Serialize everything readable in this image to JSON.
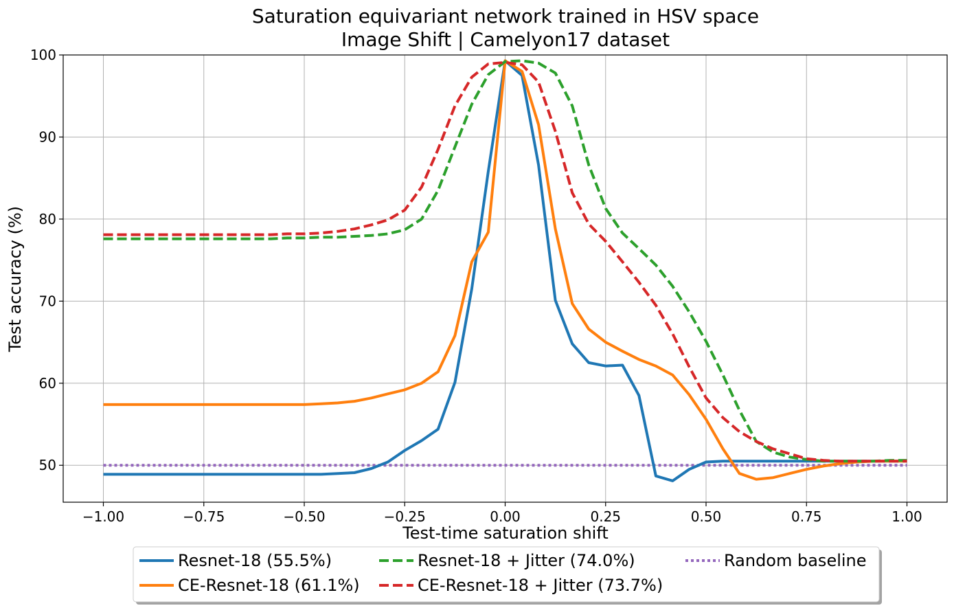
{
  "chart_data": {
    "type": "line",
    "title": [
      "Saturation equivariant network trained in HSV space",
      "Image Shift | Camelyon17 dataset"
    ],
    "xlabel": "Test-time saturation shift",
    "ylabel": "Test accuracy (%)",
    "xlim": [
      -1.1,
      1.1
    ],
    "ylim": [
      45.5,
      100
    ],
    "xticks": [
      -1.0,
      -0.75,
      -0.5,
      -0.25,
      0.0,
      0.25,
      0.5,
      0.75,
      1.0
    ],
    "xtick_labels": [
      "−1.00",
      "−0.75",
      "−0.50",
      "−0.25",
      "0.00",
      "0.25",
      "0.50",
      "0.75",
      "1.00"
    ],
    "yticks": [
      50,
      60,
      70,
      80,
      90,
      100
    ],
    "ytick_labels": [
      "50",
      "60",
      "70",
      "80",
      "90",
      "100"
    ],
    "grid": true,
    "legend_position": "below",
    "x": [
      -1.0,
      -0.958,
      -0.917,
      -0.875,
      -0.833,
      -0.792,
      -0.75,
      -0.708,
      -0.667,
      -0.625,
      -0.583,
      -0.542,
      -0.5,
      -0.458,
      -0.417,
      -0.375,
      -0.333,
      -0.292,
      -0.25,
      -0.208,
      -0.167,
      -0.125,
      -0.083,
      -0.042,
      0.0,
      0.042,
      0.083,
      0.125,
      0.167,
      0.208,
      0.25,
      0.292,
      0.333,
      0.375,
      0.417,
      0.458,
      0.5,
      0.542,
      0.583,
      0.625,
      0.667,
      0.708,
      0.75,
      0.792,
      0.833,
      0.875,
      0.917,
      0.958,
      1.0
    ],
    "series": [
      {
        "name": "Resnet-18 (55.5%)",
        "color": "#1f77b4",
        "style": "solid",
        "values": [
          48.9,
          48.9,
          48.9,
          48.9,
          48.9,
          48.9,
          48.9,
          48.9,
          48.9,
          48.9,
          48.9,
          48.9,
          48.9,
          48.9,
          49.0,
          49.1,
          49.6,
          50.4,
          51.8,
          53.0,
          54.4,
          60.1,
          71.5,
          85.8,
          99.3,
          97.5,
          86.6,
          70.1,
          64.8,
          62.5,
          62.1,
          62.2,
          58.5,
          48.7,
          48.1,
          49.5,
          50.4,
          50.5,
          50.5,
          50.5,
          50.5,
          50.5,
          50.5,
          50.5,
          50.5,
          50.5,
          50.5,
          50.5,
          50.5
        ]
      },
      {
        "name": "CE-Resnet-18 (61.1%)",
        "color": "#ff7f0e",
        "style": "solid",
        "values": [
          57.4,
          57.4,
          57.4,
          57.4,
          57.4,
          57.4,
          57.4,
          57.4,
          57.4,
          57.4,
          57.4,
          57.4,
          57.4,
          57.5,
          57.6,
          57.8,
          58.2,
          58.7,
          59.2,
          60.0,
          61.4,
          65.8,
          74.8,
          78.4,
          99.3,
          98.0,
          91.5,
          78.8,
          69.7,
          66.6,
          65.0,
          63.9,
          62.9,
          62.1,
          61.0,
          58.6,
          55.6,
          52.0,
          49.0,
          48.3,
          48.5,
          49.0,
          49.5,
          49.9,
          50.2,
          50.4,
          50.5,
          50.5,
          50.5
        ]
      },
      {
        "name": "Resnet-18 + Jitter (74.0%)",
        "color": "#2ca02c",
        "style": "dashed",
        "values": [
          77.6,
          77.6,
          77.6,
          77.6,
          77.6,
          77.6,
          77.6,
          77.6,
          77.6,
          77.6,
          77.6,
          77.7,
          77.7,
          77.8,
          77.8,
          77.9,
          78.0,
          78.2,
          78.7,
          80.0,
          83.5,
          88.8,
          94.0,
          97.6,
          99.2,
          99.3,
          99.0,
          97.8,
          93.8,
          86.6,
          81.3,
          78.3,
          76.4,
          74.4,
          71.8,
          68.7,
          65.1,
          61.0,
          56.7,
          52.9,
          51.6,
          51.0,
          50.7,
          50.5,
          50.5,
          50.5,
          50.5,
          50.6,
          50.6
        ]
      },
      {
        "name": "CE-Resnet-18 + Jitter (73.7%)",
        "color": "#d62728",
        "style": "dashed",
        "values": [
          78.1,
          78.1,
          78.1,
          78.1,
          78.1,
          78.1,
          78.1,
          78.1,
          78.1,
          78.1,
          78.1,
          78.2,
          78.2,
          78.3,
          78.5,
          78.8,
          79.3,
          79.9,
          81.1,
          83.9,
          88.5,
          93.8,
          97.3,
          98.9,
          99.1,
          98.8,
          96.7,
          90.7,
          83.2,
          79.4,
          77.3,
          74.8,
          72.3,
          69.5,
          66.0,
          62.0,
          58.2,
          55.8,
          54.1,
          52.9,
          52.0,
          51.4,
          50.8,
          50.6,
          50.5,
          50.5,
          50.5,
          50.5,
          50.5
        ]
      },
      {
        "name": "Random baseline",
        "color": "#9467bd",
        "style": "dotted",
        "values": [
          50.0,
          50.0,
          50.0,
          50.0,
          50.0,
          50.0,
          50.0,
          50.0,
          50.0,
          50.0,
          50.0,
          50.0,
          50.0,
          50.0,
          50.0,
          50.0,
          50.0,
          50.0,
          50.0,
          50.0,
          50.0,
          50.0,
          50.0,
          50.0,
          50.0,
          50.0,
          50.0,
          50.0,
          50.0,
          50.0,
          50.0,
          50.0,
          50.0,
          50.0,
          50.0,
          50.0,
          50.0,
          50.0,
          50.0,
          50.0,
          50.0,
          50.0,
          50.0,
          50.0,
          50.0,
          50.0,
          50.0,
          50.0,
          50.0
        ]
      }
    ]
  }
}
